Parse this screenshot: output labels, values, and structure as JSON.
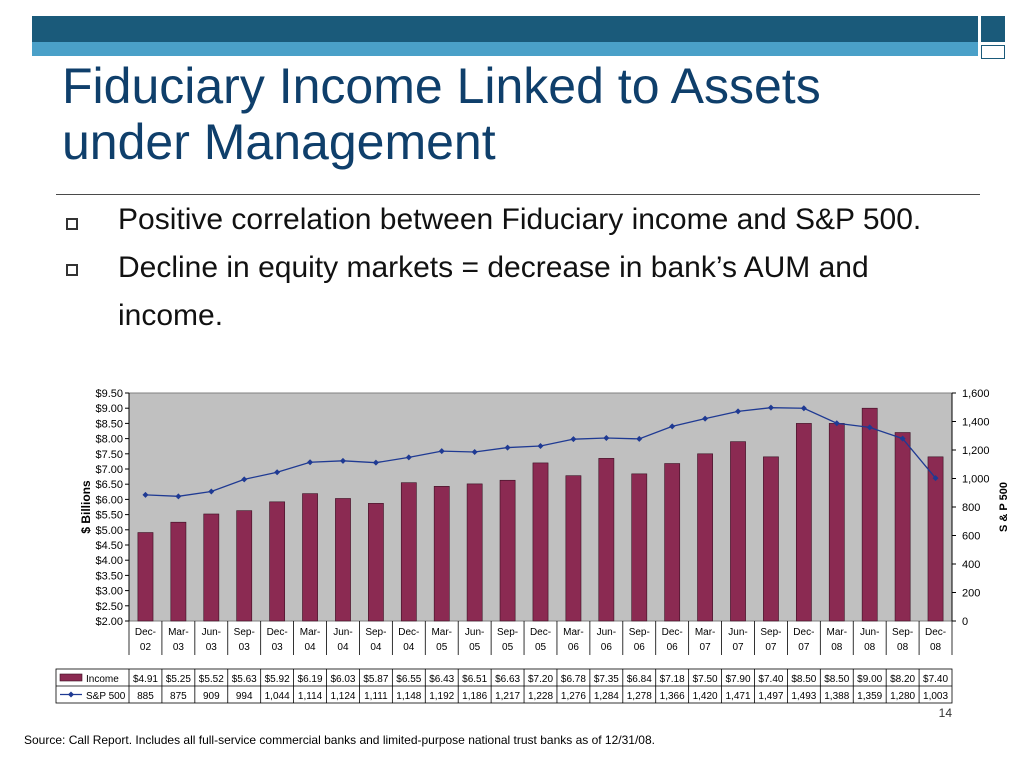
{
  "slide": {
    "title": "Fiduciary Income Linked to Assets under Management",
    "bullets": [
      "Positive correlation between Fiduciary income and S&P 500.",
      "Decline in equity markets = decrease in bank’s AUM and income."
    ],
    "page_number": "14",
    "source": "Source:  Call Report.  Includes all full-service commercial banks and limited-purpose national trust banks as of 12/31/08."
  },
  "colors": {
    "bar": "#8b2a52",
    "line": "#1f3a93",
    "plot_bg": "#c0c0c0",
    "accent": "#1a5a7a"
  },
  "chart_data": {
    "type": "bar",
    "categories": [
      [
        "Dec-",
        "02"
      ],
      [
        "Mar-",
        "03"
      ],
      [
        "Jun-",
        "03"
      ],
      [
        "Sep-",
        "03"
      ],
      [
        "Dec-",
        "03"
      ],
      [
        "Mar-",
        "04"
      ],
      [
        "Jun-",
        "04"
      ],
      [
        "Sep-",
        "04"
      ],
      [
        "Dec-",
        "04"
      ],
      [
        "Mar-",
        "05"
      ],
      [
        "Jun-",
        "05"
      ],
      [
        "Sep-",
        "05"
      ],
      [
        "Dec-",
        "05"
      ],
      [
        "Mar-",
        "06"
      ],
      [
        "Jun-",
        "06"
      ],
      [
        "Sep-",
        "06"
      ],
      [
        "Dec-",
        "06"
      ],
      [
        "Mar-",
        "07"
      ],
      [
        "Jun-",
        "07"
      ],
      [
        "Sep-",
        "07"
      ],
      [
        "Dec-",
        "07"
      ],
      [
        "Mar-",
        "08"
      ],
      [
        "Jun-",
        "08"
      ],
      [
        "Sep-",
        "08"
      ],
      [
        "Dec-",
        "08"
      ]
    ],
    "series": [
      {
        "name": "Income",
        "type": "bar",
        "axis": "left",
        "values": [
          4.91,
          5.25,
          5.52,
          5.63,
          5.92,
          6.19,
          6.03,
          5.87,
          6.55,
          6.43,
          6.51,
          6.63,
          7.2,
          6.78,
          7.35,
          6.84,
          7.18,
          7.5,
          7.9,
          7.4,
          8.5,
          8.5,
          9.0,
          8.2,
          7.4
        ],
        "labels": [
          "$4.91",
          "$5.25",
          "$5.52",
          "$5.63",
          "$5.92",
          "$6.19",
          "$6.03",
          "$5.87",
          "$6.55",
          "$6.43",
          "$6.51",
          "$6.63",
          "$7.20",
          "$6.78",
          "$7.35",
          "$6.84",
          "$7.18",
          "$7.50",
          "$7.90",
          "$7.40",
          "$8.50",
          "$8.50",
          "$9.00",
          "$8.20",
          "$7.40"
        ]
      },
      {
        "name": "S&P 500",
        "type": "line",
        "axis": "right",
        "values": [
          885,
          875,
          909,
          994,
          1044,
          1114,
          1124,
          1111,
          1148,
          1192,
          1186,
          1217,
          1228,
          1276,
          1284,
          1278,
          1366,
          1420,
          1471,
          1497,
          1493,
          1388,
          1359,
          1280,
          1003
        ],
        "labels": [
          "885",
          "875",
          "909",
          "994",
          "1,044",
          "1,114",
          "1,124",
          "1,111",
          "1,148",
          "1,192",
          "1,186",
          "1,217",
          "1,228",
          "1,276",
          "1,284",
          "1,278",
          "1,366",
          "1,420",
          "1,471",
          "1,497",
          "1,493",
          "1,388",
          "1,359",
          "1,280",
          "1,003"
        ]
      }
    ],
    "ylabel": "$ Billions",
    "y2label": "S & P 500",
    "ylim": [
      2.0,
      9.5
    ],
    "y2lim": [
      0,
      1600
    ],
    "yticks": [
      "$9.50",
      "$9.00",
      "$8.50",
      "$8.00",
      "$7.50",
      "$7.00",
      "$6.50",
      "$6.00",
      "$5.50",
      "$5.00",
      "$4.50",
      "$4.00",
      "$3.50",
      "$3.00",
      "$2.50",
      "$2.00"
    ],
    "y2ticks": [
      "1,600",
      "1,400",
      "1,200",
      "1,000",
      "800",
      "600",
      "400",
      "200",
      "0"
    ],
    "grid": false,
    "legend": "data-table"
  }
}
